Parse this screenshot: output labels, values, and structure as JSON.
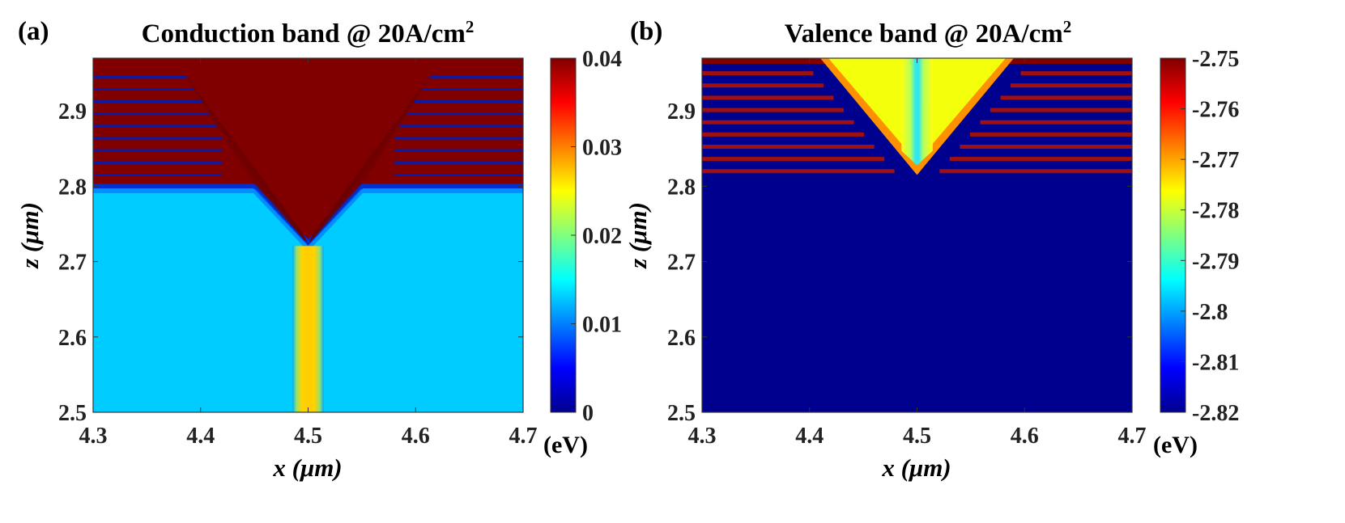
{
  "chart_data": [
    {
      "panel_label": "(a)",
      "type": "heatmap",
      "title": "Conduction band @ 20A/cm",
      "title_superscript": "2",
      "xlabel": "x (μm)",
      "ylabel": "z (μm)",
      "xlim": [
        4.3,
        4.7
      ],
      "ylim": [
        2.5,
        2.97
      ],
      "xticks": [
        "4.3",
        "4.4",
        "4.5",
        "4.6",
        "4.7"
      ],
      "yticks": [
        "2.5",
        "2.6",
        "2.7",
        "2.8",
        "2.9"
      ],
      "colorbar": {
        "range": [
          0,
          0.04
        ],
        "ticks": [
          "0",
          "0.01",
          "0.02",
          "0.03",
          "0.04"
        ],
        "unit": "(eV)",
        "colormap": "jet"
      },
      "regions": {
        "bulk_below_2_8_value": 0.013,
        "vpit_core_value": 0.027,
        "above_layers_value": 0.04,
        "vpit_apex": [
          4.5,
          2.725
        ],
        "vpit_top_x": [
          4.39,
          4.61
        ],
        "quantum_well_layers_z_top": 2.945,
        "quantum_well_layers_z_bottom": 2.815,
        "vpit_core_x": [
          4.49,
          4.51
        ]
      }
    },
    {
      "panel_label": "(b)",
      "type": "heatmap",
      "title": "Valence band @ 20A/cm",
      "title_superscript": "2",
      "xlabel": "x (μm)",
      "ylabel": "z (μm)",
      "xlim": [
        4.3,
        4.7
      ],
      "ylim": [
        2.5,
        2.97
      ],
      "xticks": [
        "4.3",
        "4.4",
        "4.5",
        "4.6",
        "4.7"
      ],
      "yticks": [
        "2.5",
        "2.6",
        "2.7",
        "2.8",
        "2.9"
      ],
      "colorbar": {
        "range": [
          -2.82,
          -2.75
        ],
        "ticks": [
          "-2.82",
          "-2.81",
          "-2.8",
          "-2.79",
          "-2.78",
          "-2.77",
          "-2.76",
          "-2.75"
        ],
        "unit": "(eV)",
        "colormap": "jet"
      },
      "regions": {
        "background_value": -2.82,
        "vpit_fill_value": -2.777,
        "vpit_core_value": -2.792,
        "layer_value": -2.75,
        "vpit_apex": [
          4.5,
          2.815
        ],
        "vpit_top_x": [
          4.41,
          4.59
        ],
        "quantum_well_layers_z_top": 2.95,
        "quantum_well_layers_z_bottom": 2.82,
        "vpit_core_x": [
          4.49,
          4.51
        ]
      }
    }
  ]
}
